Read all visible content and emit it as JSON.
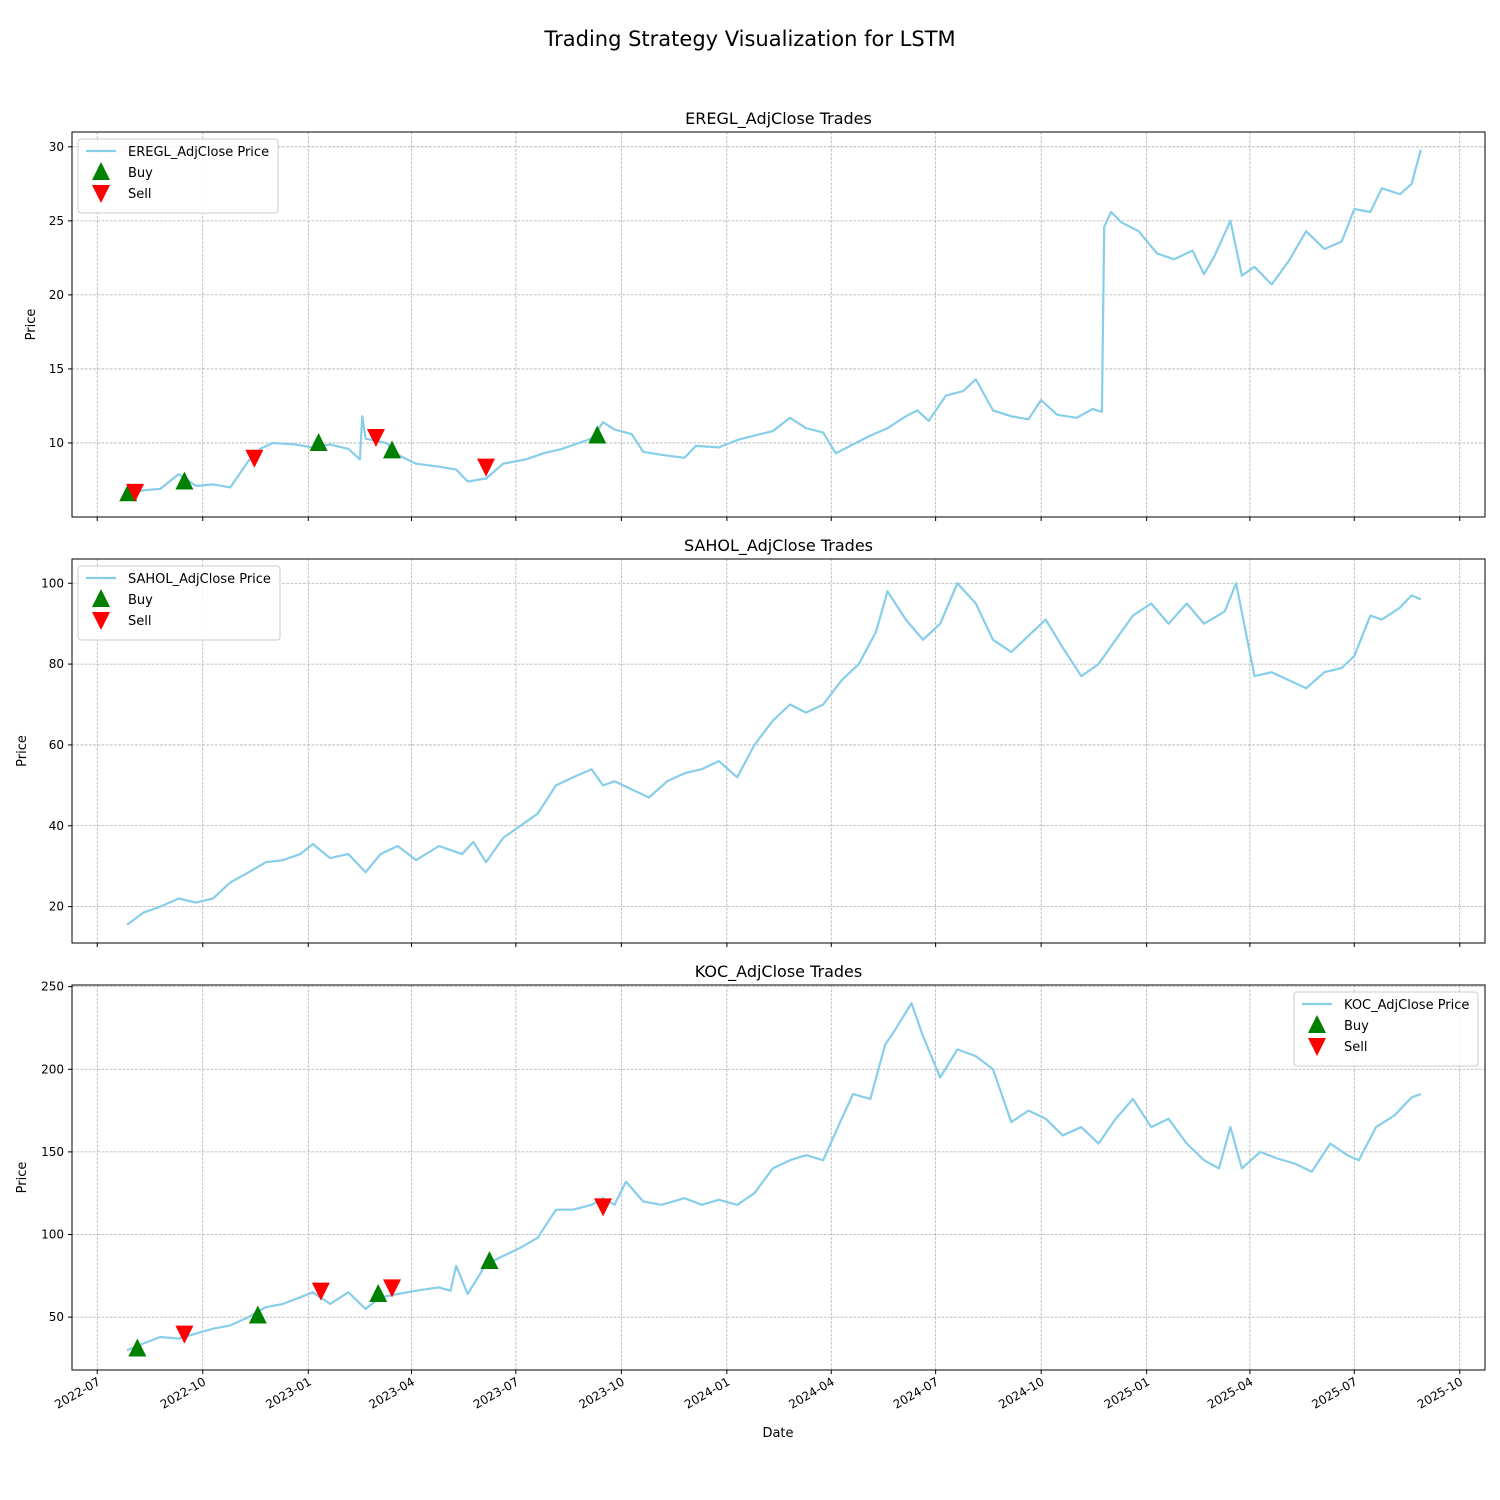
{
  "figure": {
    "suptitle": "Trading Strategy Visualization for LSTM",
    "xlabel": "Date",
    "x_tick_labels": [
      "2022-07",
      "2022-10",
      "2023-01",
      "2023-04",
      "2023-07",
      "2023-10",
      "2024-01",
      "2024-04",
      "2024-07",
      "2024-10",
      "2025-01",
      "2025-04",
      "2025-07",
      "2025-10"
    ],
    "colors": {
      "price": "#87ceeb",
      "buy": "#008000",
      "sell": "#ff0000",
      "grid": "#b0b0b0"
    }
  },
  "chart_data": [
    {
      "type": "line",
      "title": "EREGL_AdjClose Trades",
      "ylabel": "Price",
      "ylim": [
        5,
        31
      ],
      "yticks": [
        10,
        15,
        20,
        25,
        30
      ],
      "xlim": [
        "2022-06-09",
        "2025-10-23"
      ],
      "legend": {
        "placement": "upper-left",
        "entries": [
          "EREGL_AdjClose Price",
          "Buy",
          "Sell"
        ]
      },
      "grid": true,
      "series": [
        {
          "name": "EREGL_AdjClose Price",
          "x": [
            "2022-07-27",
            "2022-08-10",
            "2022-08-25",
            "2022-09-10",
            "2022-09-25",
            "2022-10-10",
            "2022-10-25",
            "2022-11-10",
            "2022-11-20",
            "2022-12-01",
            "2022-12-20",
            "2023-01-05",
            "2023-01-20",
            "2023-02-05",
            "2023-02-15",
            "2023-02-17",
            "2023-02-20",
            "2023-03-10",
            "2023-03-20",
            "2023-04-05",
            "2023-04-25",
            "2023-05-10",
            "2023-05-20",
            "2023-06-05",
            "2023-06-20",
            "2023-07-10",
            "2023-07-25",
            "2023-08-10",
            "2023-08-25",
            "2023-09-05",
            "2023-09-15",
            "2023-09-25",
            "2023-10-10",
            "2023-10-20",
            "2023-11-05",
            "2023-11-25",
            "2023-12-05",
            "2023-12-25",
            "2024-01-10",
            "2024-01-25",
            "2024-02-10",
            "2024-02-25",
            "2024-03-10",
            "2024-03-25",
            "2024-04-05",
            "2024-04-20",
            "2024-05-05",
            "2024-05-20",
            "2024-06-05",
            "2024-06-15",
            "2024-06-25",
            "2024-07-10",
            "2024-07-25",
            "2024-08-05",
            "2024-08-20",
            "2024-09-05",
            "2024-09-20",
            "2024-10-01",
            "2024-10-15",
            "2024-11-01",
            "2024-11-15",
            "2024-11-23",
            "2024-11-25",
            "2024-12-01",
            "2024-12-10",
            "2024-12-25",
            "2025-01-10",
            "2025-01-25",
            "2025-02-10",
            "2025-02-20",
            "2025-03-01",
            "2025-03-15",
            "2025-03-25",
            "2025-04-05",
            "2025-04-20",
            "2025-05-05",
            "2025-05-20",
            "2025-06-05",
            "2025-06-20",
            "2025-07-01",
            "2025-07-15",
            "2025-07-25",
            "2025-08-10",
            "2025-08-20",
            "2025-08-28"
          ],
          "y": [
            6.5,
            6.8,
            6.9,
            7.9,
            7.1,
            7.2,
            7.0,
            8.8,
            9.6,
            10.0,
            9.9,
            9.7,
            9.9,
            9.6,
            8.9,
            11.8,
            10.3,
            10.0,
            9.2,
            8.6,
            8.4,
            8.2,
            7.4,
            7.6,
            8.6,
            8.9,
            9.3,
            9.6,
            10.0,
            10.3,
            11.4,
            10.9,
            10.6,
            9.4,
            9.2,
            9.0,
            9.8,
            9.7,
            10.2,
            10.5,
            10.8,
            11.7,
            11.0,
            10.7,
            9.3,
            9.9,
            10.5,
            11.0,
            11.8,
            12.2,
            11.5,
            13.2,
            13.5,
            14.3,
            12.2,
            11.8,
            11.6,
            12.9,
            11.9,
            11.7,
            12.3,
            12.1,
            24.6,
            25.6,
            24.9,
            24.3,
            22.8,
            22.4,
            23.0,
            21.4,
            22.6,
            25.0,
            21.3,
            21.9,
            20.7,
            22.3,
            24.3,
            23.1,
            23.6,
            25.8,
            25.6,
            27.2,
            26.8,
            27.5,
            29.8
          ]
        }
      ],
      "buy": {
        "name": "Buy",
        "x": [
          "2022-07-28",
          "2022-09-15",
          "2023-01-10",
          "2023-03-15",
          "2023-09-10"
        ],
        "y": [
          6.6,
          7.4,
          10.0,
          9.5,
          10.5
        ]
      },
      "sell": {
        "name": "Sell",
        "x": [
          "2022-08-03",
          "2022-11-15",
          "2023-03-01",
          "2023-06-05"
        ],
        "y": [
          6.7,
          9.0,
          10.4,
          8.4
        ]
      }
    },
    {
      "type": "line",
      "title": "SAHOL_AdjClose Trades",
      "ylabel": "Price",
      "ylim": [
        11,
        106
      ],
      "yticks": [
        20,
        40,
        60,
        80,
        100
      ],
      "xlim": [
        "2022-06-09",
        "2025-10-23"
      ],
      "legend": {
        "placement": "upper-left",
        "entries": [
          "SAHOL_AdjClose Price",
          "Buy",
          "Sell"
        ]
      },
      "grid": true,
      "series": [
        {
          "name": "SAHOL_AdjClose Price",
          "x": [
            "2022-07-27",
            "2022-08-10",
            "2022-08-25",
            "2022-09-10",
            "2022-09-25",
            "2022-10-10",
            "2022-10-25",
            "2022-11-10",
            "2022-11-25",
            "2022-12-10",
            "2022-12-25",
            "2023-01-05",
            "2023-01-20",
            "2023-02-05",
            "2023-02-20",
            "2023-03-05",
            "2023-03-20",
            "2023-04-05",
            "2023-04-25",
            "2023-05-15",
            "2023-05-25",
            "2023-06-05",
            "2023-06-20",
            "2023-07-05",
            "2023-07-20",
            "2023-08-05",
            "2023-08-20",
            "2023-09-05",
            "2023-09-15",
            "2023-09-25",
            "2023-10-10",
            "2023-10-25",
            "2023-11-10",
            "2023-11-25",
            "2023-12-10",
            "2023-12-25",
            "2024-01-10",
            "2024-01-25",
            "2024-02-10",
            "2024-02-25",
            "2024-03-10",
            "2024-03-25",
            "2024-04-10",
            "2024-04-25",
            "2024-05-10",
            "2024-05-20",
            "2024-06-05",
            "2024-06-20",
            "2024-07-05",
            "2024-07-20",
            "2024-08-05",
            "2024-08-20",
            "2024-09-05",
            "2024-09-20",
            "2024-10-05",
            "2024-10-20",
            "2024-11-05",
            "2024-11-20",
            "2024-12-05",
            "2024-12-20",
            "2025-01-05",
            "2025-01-20",
            "2025-02-05",
            "2025-02-20",
            "2025-03-10",
            "2025-03-20",
            "2025-04-05",
            "2025-04-20",
            "2025-05-05",
            "2025-05-20",
            "2025-06-05",
            "2025-06-20",
            "2025-07-01",
            "2025-07-15",
            "2025-07-25",
            "2025-08-10",
            "2025-08-20",
            "2025-08-28"
          ],
          "y": [
            15.5,
            18.5,
            20.0,
            22.0,
            21.0,
            22.0,
            26.0,
            28.5,
            31.0,
            31.5,
            33.0,
            35.5,
            32.0,
            33.0,
            28.5,
            33.0,
            35.0,
            31.5,
            35.0,
            33.0,
            36.0,
            31.0,
            37.0,
            40.0,
            43.0,
            50.0,
            52.0,
            54.0,
            50.0,
            51.0,
            49.0,
            47.0,
            51.0,
            53.0,
            54.0,
            56.0,
            52.0,
            60.0,
            66.0,
            70.0,
            68.0,
            70.0,
            76.0,
            80.0,
            88.0,
            98.0,
            91.0,
            86.0,
            90.0,
            100.0,
            95.0,
            86.0,
            83.0,
            87.0,
            91.0,
            84.0,
            77.0,
            80.0,
            86.0,
            92.0,
            95.0,
            90.0,
            95.0,
            90.0,
            93.0,
            100.0,
            77.0,
            78.0,
            76.0,
            74.0,
            78.0,
            79.0,
            82.0,
            92.0,
            91.0,
            94.0,
            97.0,
            96.0
          ]
        }
      ],
      "buy": {
        "name": "Buy",
        "x": [],
        "y": []
      },
      "sell": {
        "name": "Sell",
        "x": [],
        "y": []
      }
    },
    {
      "type": "line",
      "title": "KOC_AdjClose Trades",
      "ylabel": "Price",
      "ylim": [
        18,
        251
      ],
      "yticks": [
        50,
        100,
        150,
        200,
        250
      ],
      "xlim": [
        "2022-06-09",
        "2025-10-23"
      ],
      "legend": {
        "placement": "upper-right",
        "entries": [
          "KOC_AdjClose Price",
          "Buy",
          "Sell"
        ]
      },
      "grid": true,
      "series": [
        {
          "name": "KOC_AdjClose Price",
          "x": [
            "2022-07-27",
            "2022-08-10",
            "2022-08-25",
            "2022-09-10",
            "2022-09-25",
            "2022-10-10",
            "2022-10-25",
            "2022-11-10",
            "2022-11-25",
            "2022-12-10",
            "2022-12-25",
            "2023-01-05",
            "2023-01-20",
            "2023-02-05",
            "2023-02-20",
            "2023-03-05",
            "2023-03-20",
            "2023-04-05",
            "2023-04-25",
            "2023-05-05",
            "2023-05-10",
            "2023-05-20",
            "2023-06-05",
            "2023-06-20",
            "2023-07-05",
            "2023-07-20",
            "2023-08-05",
            "2023-08-20",
            "2023-09-05",
            "2023-09-15",
            "2023-09-25",
            "2023-10-05",
            "2023-10-20",
            "2023-11-05",
            "2023-11-25",
            "2023-12-10",
            "2023-12-25",
            "2024-01-10",
            "2024-01-25",
            "2024-02-10",
            "2024-02-25",
            "2024-03-10",
            "2024-03-25",
            "2024-04-10",
            "2024-04-20",
            "2024-05-05",
            "2024-05-18",
            "2024-05-25",
            "2024-06-10",
            "2024-06-20",
            "2024-07-05",
            "2024-07-20",
            "2024-08-05",
            "2024-08-20",
            "2024-09-05",
            "2024-09-20",
            "2024-10-05",
            "2024-10-20",
            "2024-11-05",
            "2024-11-20",
            "2024-12-05",
            "2024-12-20",
            "2025-01-05",
            "2025-01-20",
            "2025-02-05",
            "2025-02-20",
            "2025-03-05",
            "2025-03-15",
            "2025-03-25",
            "2025-04-10",
            "2025-04-25",
            "2025-05-10",
            "2025-05-25",
            "2025-06-10",
            "2025-06-25",
            "2025-07-05",
            "2025-07-20",
            "2025-08-05",
            "2025-08-20",
            "2025-08-28"
          ],
          "y": [
            30,
            34,
            38,
            37,
            40,
            43,
            45,
            50,
            56,
            58,
            62,
            65,
            58,
            65,
            55,
            62,
            64,
            66,
            68,
            66,
            81,
            64,
            82,
            87,
            92,
            98,
            115,
            115,
            118,
            122,
            118,
            132,
            120,
            118,
            122,
            118,
            121,
            118,
            125,
            140,
            145,
            148,
            145,
            170,
            185,
            182,
            215,
            222,
            240,
            220,
            195,
            212,
            208,
            200,
            168,
            175,
            170,
            160,
            165,
            155,
            170,
            182,
            165,
            170,
            155,
            145,
            140,
            165,
            140,
            150,
            146,
            143,
            138,
            155,
            148,
            145,
            165,
            172,
            183,
            185
          ]
        }
      ],
      "buy": {
        "name": "Buy",
        "x": [
          "2022-08-05",
          "2022-11-18",
          "2023-03-03",
          "2023-06-08"
        ],
        "y": [
          31,
          51,
          64,
          84
        ]
      },
      "sell": {
        "name": "Sell",
        "x": [
          "2022-09-15",
          "2023-01-12",
          "2023-03-15",
          "2023-09-15"
        ],
        "y": [
          40,
          66,
          68,
          117
        ]
      }
    }
  ]
}
